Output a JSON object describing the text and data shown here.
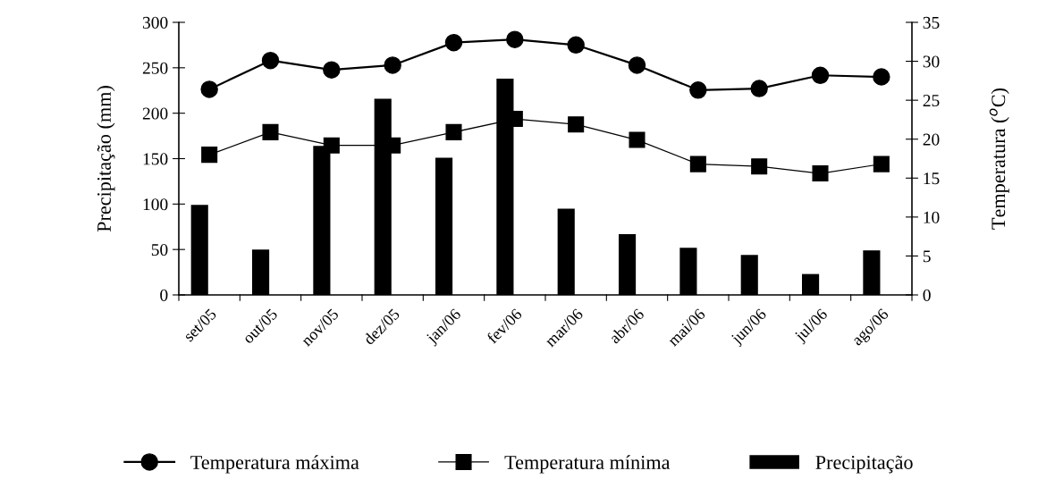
{
  "chart_data": {
    "type": "bar",
    "categories": [
      "set/05",
      "out/05",
      "nov/05",
      "dez/05",
      "jan/06",
      "fev/06",
      "mar/06",
      "abr/06",
      "mai/06",
      "jun/06",
      "jul/06",
      "ago/06"
    ],
    "series": [
      {
        "name": "Temperatura máxima",
        "type": "line",
        "axis": "y2",
        "color": "#000000",
        "marker": "circle",
        "values": [
          26.4,
          30.1,
          28.9,
          29.5,
          32.4,
          32.8,
          32.1,
          29.5,
          26.3,
          26.5,
          28.2,
          28.0
        ]
      },
      {
        "name": "Temperatura mínima",
        "type": "line",
        "axis": "y2",
        "color": "#000000",
        "marker": "square",
        "values": [
          18.0,
          20.9,
          19.2,
          19.2,
          20.9,
          22.6,
          21.9,
          19.9,
          16.8,
          16.5,
          15.6,
          16.8
        ]
      },
      {
        "name": "Precipitação",
        "color": "#000000",
        "values": [
          99,
          50,
          164,
          216,
          151,
          238,
          95,
          67,
          52,
          44,
          23,
          49
        ]
      }
    ],
    "ylabel": "Precipitação (mm)",
    "y2label": "Temperatura ($^{o}$C)",
    "ylim": [
      0,
      300
    ],
    "yticks": [
      0,
      50,
      100,
      150,
      200,
      250,
      300
    ],
    "y2lim": [
      0,
      35
    ],
    "y2ticks": [
      0,
      5,
      10,
      15,
      20,
      25,
      30,
      35
    ],
    "grid": false,
    "legend": "bottom"
  }
}
